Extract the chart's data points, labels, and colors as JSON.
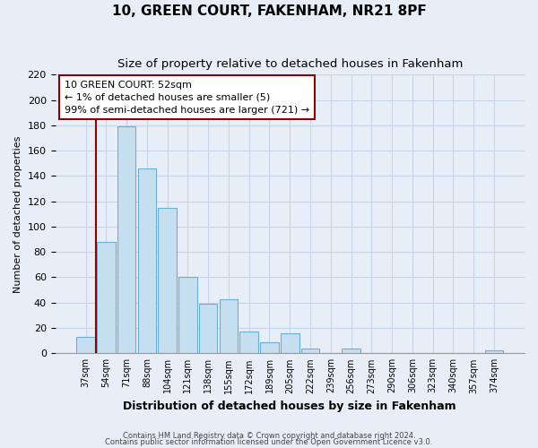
{
  "title": "10, GREEN COURT, FAKENHAM, NR21 8PF",
  "subtitle": "Size of property relative to detached houses in Fakenham",
  "xlabel": "Distribution of detached houses by size in Fakenham",
  "ylabel": "Number of detached properties",
  "bar_labels": [
    "37sqm",
    "54sqm",
    "71sqm",
    "88sqm",
    "104sqm",
    "121sqm",
    "138sqm",
    "155sqm",
    "172sqm",
    "189sqm",
    "205sqm",
    "222sqm",
    "239sqm",
    "256sqm",
    "273sqm",
    "290sqm",
    "306sqm",
    "323sqm",
    "340sqm",
    "357sqm",
    "374sqm"
  ],
  "bar_values": [
    13,
    88,
    179,
    146,
    115,
    60,
    39,
    43,
    17,
    9,
    16,
    4,
    0,
    4,
    0,
    0,
    0,
    0,
    0,
    0,
    2
  ],
  "bar_facecolor": "#c5dff0",
  "bar_edgecolor": "#6aaed6",
  "ylim": [
    0,
    220
  ],
  "yticks": [
    0,
    20,
    40,
    60,
    80,
    100,
    120,
    140,
    160,
    180,
    200,
    220
  ],
  "red_line_bar_index": 1,
  "annotation_line1": "10 GREEN COURT: 52sqm",
  "annotation_line2": "← 1% of detached houses are smaller (5)",
  "annotation_line3": "99% of semi-detached houses are larger (721) →",
  "footer1": "Contains HM Land Registry data © Crown copyright and database right 2024.",
  "footer2": "Contains public sector information licensed under the Open Government Licence v3.0.",
  "bg_color": "#e8eef8",
  "grid_color": "#c8d4e8",
  "title_fontsize": 11,
  "subtitle_fontsize": 9.5,
  "xlabel_fontsize": 9,
  "ylabel_fontsize": 8
}
